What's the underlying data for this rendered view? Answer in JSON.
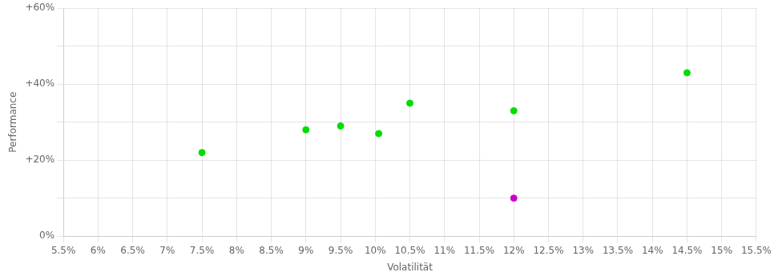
{
  "chart_data": {
    "type": "scatter",
    "xlabel": "Volatilität",
    "ylabel": "Performance",
    "xlim": [
      5.5,
      15.5
    ],
    "ylim": [
      0,
      60
    ],
    "xticks": [
      {
        "value": 5.5,
        "label": "5.5%"
      },
      {
        "value": 6.0,
        "label": "6%"
      },
      {
        "value": 6.5,
        "label": "6.5%"
      },
      {
        "value": 7.0,
        "label": "7%"
      },
      {
        "value": 7.5,
        "label": "7.5%"
      },
      {
        "value": 8.0,
        "label": "8%"
      },
      {
        "value": 8.5,
        "label": "8.5%"
      },
      {
        "value": 9.0,
        "label": "9%"
      },
      {
        "value": 9.5,
        "label": "9.5%"
      },
      {
        "value": 10.0,
        "label": "10%"
      },
      {
        "value": 10.5,
        "label": "10.5%"
      },
      {
        "value": 11.0,
        "label": "11%"
      },
      {
        "value": 11.5,
        "label": "11.5%"
      },
      {
        "value": 12.0,
        "label": "12%"
      },
      {
        "value": 12.5,
        "label": "12.5%"
      },
      {
        "value": 13.0,
        "label": "13%"
      },
      {
        "value": 13.5,
        "label": "13.5%"
      },
      {
        "value": 14.0,
        "label": "14%"
      },
      {
        "value": 14.5,
        "label": "14.5%"
      },
      {
        "value": 15.0,
        "label": "15%"
      },
      {
        "value": 15.5,
        "label": "15.5%"
      }
    ],
    "yticks": [
      {
        "value": 0,
        "label": "0%"
      },
      {
        "value": 10,
        "label": ""
      },
      {
        "value": 20,
        "label": "+20%"
      },
      {
        "value": 30,
        "label": ""
      },
      {
        "value": 40,
        "label": "+40%"
      },
      {
        "value": 50,
        "label": ""
      },
      {
        "value": 60,
        "label": "+60%"
      }
    ],
    "grid": true,
    "series": [
      {
        "color": "#00dd00",
        "x": [
          7.5,
          9.0,
          9.5,
          10.05,
          10.5,
          12.0,
          14.5
        ],
        "values": [
          22,
          28,
          29,
          27,
          35,
          33,
          43
        ]
      },
      {
        "color": "#cc00cc",
        "x": [
          12.0
        ],
        "values": [
          10
        ]
      }
    ]
  }
}
